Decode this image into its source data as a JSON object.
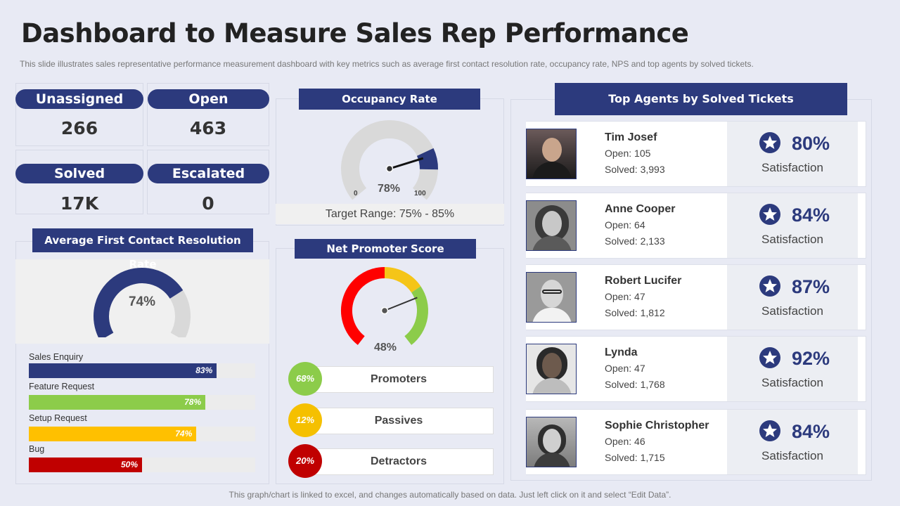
{
  "page": {
    "title": "Dashboard to Measure Sales Rep Performance",
    "subtitle": "This slide illustrates sales representative  performance  measurement dashboard with key metrics such as average  first contact resolution rate, occupancy rate, NPS and top agents by solved tickets.",
    "footer": "This graph/chart is linked to excel, and changes automatically based on data. Just left click on it and select “Edit Data”."
  },
  "kpis": [
    {
      "label": "Unassigned",
      "value": "266"
    },
    {
      "label": "Open",
      "value": "463"
    },
    {
      "label": "Solved",
      "value": "17K"
    },
    {
      "label": "Escalated",
      "value": "0"
    }
  ],
  "fcr": {
    "title": "Average First Contact Resolution Rate",
    "value": 74,
    "value_label": "74%",
    "bars": [
      {
        "label": "Sales Enquiry",
        "value": 83,
        "pct": "83%",
        "color": "#2c3a7d"
      },
      {
        "label": "Feature Request",
        "value": 78,
        "pct": "78%",
        "color": "#8ccc4a"
      },
      {
        "label": "Setup Request",
        "value": 74,
        "pct": "74%",
        "color": "#ffc000"
      },
      {
        "label": "Bug",
        "value": 50,
        "pct": "50%",
        "color": "#c00000"
      }
    ]
  },
  "occupancy": {
    "title": "Occupancy Rate",
    "value": 78,
    "value_label": "78%",
    "min_label": "0",
    "max_label": "100",
    "target_from": 75,
    "target_to": 85,
    "target_label": "Target Range: 75% - 85%"
  },
  "nps": {
    "title": "Net Promoter Score",
    "value": 48,
    "value_label": "48%",
    "rows": [
      {
        "pct": "68%",
        "label": "Promoters",
        "color": "#8ccc4a"
      },
      {
        "pct": "12%",
        "label": "Passives",
        "color": "#f5c000"
      },
      {
        "pct": "20%",
        "label": "Detractors",
        "color": "#c00000"
      }
    ]
  },
  "agents": {
    "title": "Top Agents by Solved Tickets",
    "items": [
      {
        "name": "Tim Josef",
        "open": "Open: 105",
        "solved": "Solved: 3,993",
        "pct": "80%",
        "sat": "Satisfaction"
      },
      {
        "name": "Anne Cooper",
        "open": "Open: 64",
        "solved": "Solved: 2,133",
        "pct": "84%",
        "sat": "Satisfaction"
      },
      {
        "name": "Robert Lucifer",
        "open": "Open: 47",
        "solved": "Solved: 1,812",
        "pct": "87%",
        "sat": "Satisfaction"
      },
      {
        "name": "Lynda",
        "open": "Open: 47",
        "solved": "Solved: 1,768",
        "pct": "92%",
        "sat": "Satisfaction"
      },
      {
        "name": "Sophie  Christopher",
        "open": "Open: 46",
        "solved": "Solved: 1,715",
        "pct": "84%",
        "sat": "Satisfaction"
      }
    ]
  },
  "colors": {
    "navy": "#2c3a7d",
    "gauge_grey": "#d9d9d9",
    "nps_red": "#ff0000",
    "nps_yellow": "#f5c518",
    "nps_green": "#8ccc4a"
  }
}
